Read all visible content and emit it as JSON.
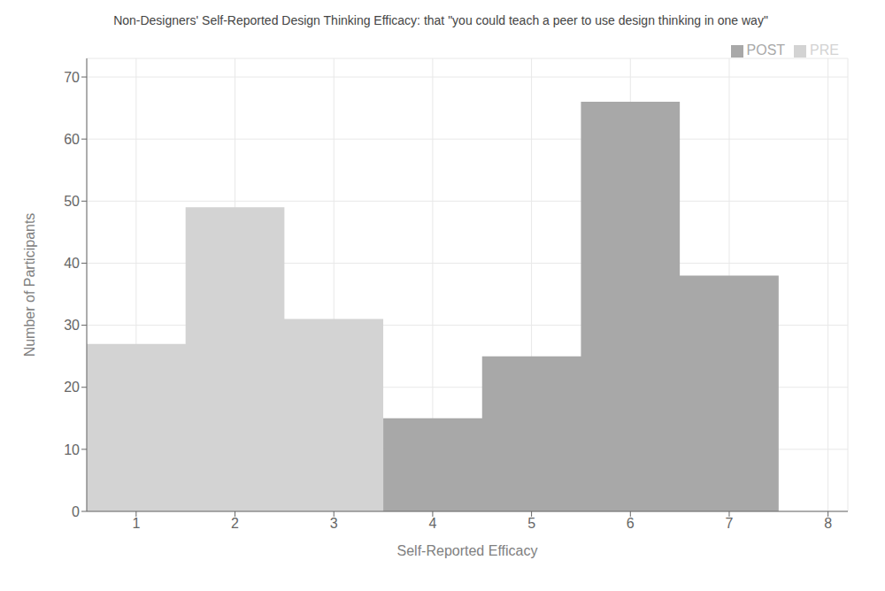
{
  "chart_data": {
    "type": "histogram",
    "title": "Non-Designers' Self-Reported Design Thinking Efficacy: that \"you could teach a peer to use design thinking in one way\"",
    "x_label": "Self-Reported Efficacy",
    "y_label": "Number of Participants",
    "series": [
      {
        "name": "PRE",
        "color": "#d3d3d3",
        "bins": [
          0.5,
          1.5,
          2.5,
          3.5
        ],
        "values": [
          27,
          49,
          31
        ]
      },
      {
        "name": "POST",
        "color": "#a8a8a8",
        "bins": [
          3.5,
          4.5,
          5.5,
          6.5,
          7.5
        ],
        "values": [
          15,
          25,
          66,
          38
        ]
      }
    ],
    "xlim": [
      0.5,
      8.2
    ],
    "ylim": [
      0,
      73
    ],
    "xticks": [
      1,
      2,
      3,
      4,
      5,
      6,
      7,
      8
    ],
    "yticks": [
      0,
      10,
      20,
      30,
      40,
      50,
      60,
      70
    ],
    "grid": true,
    "legend": "upper right"
  }
}
